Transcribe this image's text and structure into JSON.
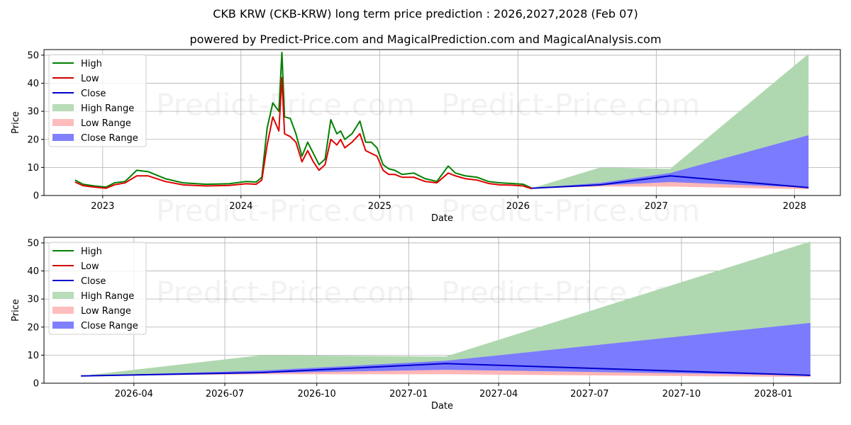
{
  "header": {
    "title": "CKB KRW (CKB-KRW) long term price prediction : 2026,2027,2028 (Feb 07)",
    "subtitle": "powered by Predict-Price.com and MagicalPrediction.com and MagicalAnalysis.com"
  },
  "watermark": "Predict-Price.com",
  "colors": {
    "high": "#008000",
    "low": "#e00000",
    "close": "#0000cc",
    "high_range": "#b0d8b0",
    "low_range": "#ffb6b6",
    "close_range": "#7b7bff",
    "grid": "#b0b0b0"
  },
  "legend": [
    {
      "label": "High",
      "kind": "line",
      "color": "#008000"
    },
    {
      "label": "Low",
      "kind": "line",
      "color": "#cc0000"
    },
    {
      "label": "Close",
      "kind": "line",
      "color": "#0000cc"
    },
    {
      "label": "High Range",
      "kind": "patch",
      "color": "#b9dcb9"
    },
    {
      "label": "Low Range",
      "kind": "patch",
      "color": "#ffbcbc"
    },
    {
      "label": "Close Range",
      "kind": "patch",
      "color": "#8080ff"
    }
  ],
  "chart_data": [
    {
      "type": "line",
      "title": "CKB KRW (CKB-KRW) long term price prediction : 2026,2027,2028 (Feb 07)",
      "xlabel": "Date",
      "ylabel": "Price",
      "ylim": [
        0,
        52
      ],
      "yticks": [
        0,
        10,
        20,
        30,
        40,
        50
      ],
      "xticks": [
        "2023",
        "2024",
        "2025",
        "2026",
        "2027",
        "2028"
      ],
      "grid": true,
      "legend_position": "upper left",
      "x_range": [
        "2022-07-30",
        "2028-05-01"
      ],
      "history": {
        "x": [
          "2022-10-20",
          "2022-11-10",
          "2022-12-10",
          "2023-01-10",
          "2023-02-01",
          "2023-03-01",
          "2023-04-01",
          "2023-05-01",
          "2023-06-15",
          "2023-08-01",
          "2023-10-01",
          "2023-12-01",
          "2024-01-15",
          "2024-02-10",
          "2024-02-25",
          "2024-03-10",
          "2024-03-25",
          "2024-04-10",
          "2024-04-18",
          "2024-04-25",
          "2024-05-10",
          "2024-05-25",
          "2024-06-10",
          "2024-06-25",
          "2024-07-10",
          "2024-07-25",
          "2024-08-10",
          "2024-08-25",
          "2024-09-10",
          "2024-09-20",
          "2024-10-01",
          "2024-10-20",
          "2024-11-10",
          "2024-11-25",
          "2024-12-10",
          "2024-12-25",
          "2025-01-10",
          "2025-01-25",
          "2025-02-10",
          "2025-03-01",
          "2025-04-01",
          "2025-05-01",
          "2025-06-01",
          "2025-07-01",
          "2025-07-20",
          "2025-08-15",
          "2025-09-15",
          "2025-10-15",
          "2025-11-15",
          "2025-12-15",
          "2026-01-15",
          "2026-02-07"
        ],
        "high": [
          5.5,
          4.0,
          3.4,
          3.0,
          4.5,
          5.0,
          9.0,
          8.5,
          6.0,
          4.5,
          4.0,
          4.2,
          5.0,
          4.8,
          6.5,
          24.0,
          33.0,
          30.0,
          51.0,
          28.0,
          27.5,
          22.0,
          14.0,
          19.0,
          15.0,
          11.0,
          13.0,
          27.0,
          22.0,
          23.0,
          20.0,
          22.0,
          26.5,
          19.0,
          19.0,
          17.0,
          11.0,
          9.5,
          9.0,
          7.5,
          8.0,
          6.0,
          5.0,
          10.5,
          8.0,
          7.0,
          6.5,
          5.0,
          4.5,
          4.3,
          4.0,
          2.6
        ],
        "low": [
          4.8,
          3.5,
          3.0,
          2.6,
          3.8,
          4.5,
          7.0,
          7.0,
          5.0,
          3.8,
          3.4,
          3.6,
          4.2,
          4.0,
          5.5,
          18.0,
          28.0,
          23.0,
          42.0,
          22.0,
          21.0,
          19.0,
          12.0,
          16.0,
          12.0,
          9.0,
          11.0,
          20.0,
          18.0,
          20.0,
          17.0,
          19.0,
          22.0,
          16.0,
          15.0,
          14.0,
          9.0,
          7.5,
          7.5,
          6.5,
          6.5,
          5.0,
          4.5,
          8.0,
          7.0,
          6.0,
          5.5,
          4.3,
          3.8,
          3.7,
          3.4,
          2.4
        ]
      },
      "prediction": {
        "x": [
          "2026-02-07",
          "2026-08-07",
          "2027-02-07",
          "2028-02-07"
        ],
        "close": [
          2.6,
          3.8,
          7.0,
          2.8
        ],
        "high_range_upper": [
          2.6,
          10.0,
          9.5,
          50.5
        ],
        "close_range_upper": [
          2.6,
          4.5,
          8.0,
          21.5
        ],
        "close_range_lower": [
          2.6,
          3.6,
          4.8,
          2.8
        ],
        "low_range_lower": [
          2.6,
          3.2,
          3.2,
          2.2
        ]
      }
    },
    {
      "type": "area",
      "xlabel": "Date",
      "ylabel": "Price",
      "ylim": [
        0,
        52
      ],
      "yticks": [
        0,
        10,
        20,
        30,
        40,
        50
      ],
      "xticks": [
        "2026-04",
        "2026-07",
        "2026-10",
        "2027-01",
        "2027-04",
        "2027-07",
        "2027-10",
        "2028-01"
      ],
      "grid": true,
      "legend_position": "upper left",
      "x_range": [
        "2026-01-01",
        "2028-03-08"
      ],
      "prediction": {
        "x": [
          "2026-02-07",
          "2026-08-07",
          "2027-02-07",
          "2028-02-07"
        ],
        "close": [
          2.6,
          3.8,
          7.0,
          2.8
        ],
        "high_range_upper": [
          2.6,
          10.0,
          9.5,
          50.5
        ],
        "close_range_upper": [
          2.6,
          4.5,
          8.0,
          21.5
        ],
        "close_range_lower": [
          2.6,
          3.6,
          4.8,
          2.8
        ],
        "low_range_lower": [
          2.6,
          3.2,
          3.2,
          2.2
        ]
      }
    }
  ]
}
